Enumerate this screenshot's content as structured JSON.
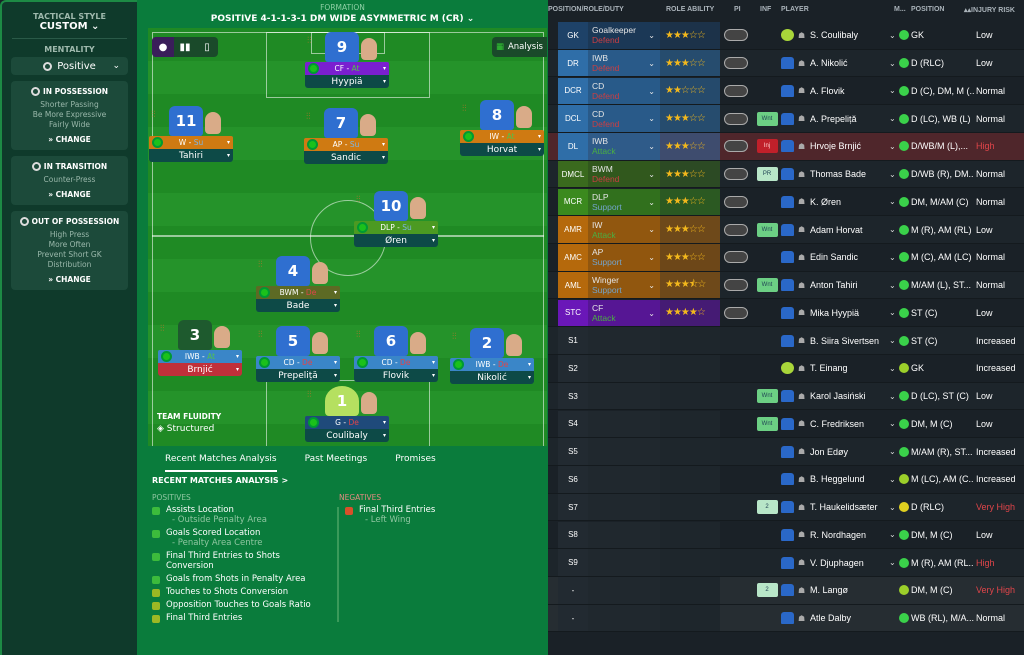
{
  "sidebar": {
    "tactical_style_label": "TACTICAL STYLE",
    "tactical_style": "CUSTOM",
    "mentality_label": "MENTALITY",
    "mentality": "Positive",
    "panels": [
      {
        "title": "IN POSSESSION",
        "lines": [
          "Shorter Passing",
          "Be More Expressive",
          "Fairly Wide"
        ],
        "action": "CHANGE"
      },
      {
        "title": "IN TRANSITION",
        "lines": [
          "Counter-Press"
        ],
        "action": "CHANGE"
      },
      {
        "title": "OUT OF POSSESSION",
        "lines": [
          "High Press",
          "More Often",
          "Prevent Short GK",
          "Distribution"
        ],
        "action": "CHANGE"
      }
    ]
  },
  "formation": {
    "label": "FORMATION",
    "name": "POSITIVE 4-1-1-3-1 DM WIDE ASYMMETRIC M (CR)",
    "analysis": "Analysis",
    "team_fluidity_label": "TEAM FLUIDITY",
    "team_fluidity": "Structured",
    "players": [
      {
        "number": "9",
        "role": "CF",
        "duty": "At",
        "name": "Hyypiä",
        "role_color": "#7a1fd0"
      },
      {
        "number": "11",
        "role": "W",
        "duty": "Su",
        "name": "Tahiri",
        "role_color": "#cf7a12"
      },
      {
        "number": "7",
        "role": "AP",
        "duty": "Su",
        "name": "Sandic",
        "role_color": "#cf7a12"
      },
      {
        "number": "8",
        "role": "IW",
        "duty": "At",
        "name": "Horvat",
        "role_color": "#cf7a12"
      },
      {
        "number": "10",
        "role": "DLP",
        "duty": "Su",
        "name": "Øren",
        "role_color": "#4c9a22"
      },
      {
        "number": "4",
        "role": "BWM",
        "duty": "De",
        "name": "Bade",
        "role_color": "#5d6a24"
      },
      {
        "number": "3",
        "role": "IWB",
        "duty": "At",
        "name": "Brnjić",
        "role_color": "#3a86c8",
        "name_color": "#c0303a"
      },
      {
        "number": "5",
        "role": "CD",
        "duty": "De",
        "name": "Prepeliță",
        "role_color": "#3a86c8"
      },
      {
        "number": "6",
        "role": "CD",
        "duty": "De",
        "name": "Flovik",
        "role_color": "#3a86c8"
      },
      {
        "number": "2",
        "role": "IWB",
        "duty": "De",
        "name": "Nikolić",
        "role_color": "#3a86c8"
      },
      {
        "number": "1",
        "role": "G",
        "duty": "De",
        "name": "Coulibaly",
        "role_color": "#1f4a7a"
      }
    ]
  },
  "analysis": {
    "tabs": [
      "Recent Matches Analysis",
      "Past Meetings",
      "Promises"
    ],
    "heading": "RECENT MATCHES ANALYSIS >",
    "positives_label": "POSITIVES",
    "negatives_label": "NEGATIVES",
    "positives": [
      {
        "title": "Assists Location",
        "detail": "- Outside Penalty Area"
      },
      {
        "title": "Goals Scored Location",
        "detail": "- Penalty Area Centre"
      },
      {
        "title": "Final Third Entries to Shots Conversion",
        "detail": ""
      },
      {
        "title": "Goals from Shots in Penalty Area",
        "detail": ""
      },
      {
        "title": "Touches to Shots Conversion",
        "detail": ""
      },
      {
        "title": "Opposition Touches to Goals Ratio",
        "detail": ""
      },
      {
        "title": "Final Third Entries",
        "detail": ""
      }
    ],
    "negatives": [
      {
        "title": "Final Third Entries",
        "detail": "- Left Wing"
      }
    ]
  },
  "table": {
    "headers": [
      "POSITION/ROLE/DUTY",
      "ROLE ABILITY",
      "PI",
      "INF",
      "PLAYER",
      "M...",
      "POSITION",
      "INJURY RISK"
    ],
    "rows": [
      {
        "pos": "GK",
        "role": "Goalkeeper",
        "duty": "Defend",
        "stars": 3,
        "name": "S. Coulibaly",
        "position": "GK",
        "risk": "Low",
        "color": "#1e4268",
        "inf": ""
      },
      {
        "pos": "DR",
        "role": "IWB",
        "duty": "Defend",
        "stars": 3,
        "name": "A. Nikolić",
        "position": "D (RLC)",
        "risk": "Low",
        "color": "#2f6ea8",
        "inf": ""
      },
      {
        "pos": "DCR",
        "role": "CD",
        "duty": "Defend",
        "stars": 2,
        "name": "A. Flovik",
        "position": "D (C), DM, M (...",
        "risk": "Normal",
        "color": "#2f6ea8",
        "inf": ""
      },
      {
        "pos": "DCL",
        "role": "CD",
        "duty": "Defend",
        "stars": 3,
        "name": "A. Prepeliță",
        "position": "D (LC), WB (L)",
        "risk": "Normal",
        "color": "#2f6ea8",
        "inf": "Wnt"
      },
      {
        "pos": "DL",
        "role": "IWB",
        "duty": "Attack",
        "stars": 3,
        "name": "Hrvoje Brnjić",
        "position": "D/WB/M (L),...",
        "risk": "High",
        "color": "#2f6ea8",
        "inf": "Inj",
        "highlight": true
      },
      {
        "pos": "DMCL",
        "role": "BWM",
        "duty": "Defend",
        "stars": 3,
        "name": "Thomas Bade",
        "position": "D/WB (R), DM...",
        "risk": "Normal",
        "color": "#3a6a1e",
        "inf": "PR"
      },
      {
        "pos": "MCR",
        "role": "DLP",
        "duty": "Support",
        "stars": 3,
        "name": "K. Øren",
        "position": "DM, M/AM (C)",
        "risk": "Normal",
        "color": "#3b8a1e",
        "inf": ""
      },
      {
        "pos": "AMR",
        "role": "IW",
        "duty": "Attack",
        "stars": 3,
        "name": "Adam Horvat",
        "position": "M (R), AM (RL)",
        "risk": "Low",
        "color": "#b5690c",
        "inf": "Wnt"
      },
      {
        "pos": "AMC",
        "role": "AP",
        "duty": "Support",
        "stars": 3,
        "name": "Edin Sandic",
        "position": "M (C), AM (LC)",
        "risk": "Normal",
        "color": "#b5690c",
        "inf": ""
      },
      {
        "pos": "AML",
        "role": "Winger",
        "duty": "Support",
        "stars": 3.5,
        "name": "Anton Tahiri",
        "position": "M/AM (L), ST...",
        "risk": "Normal",
        "color": "#b5690c",
        "inf": "Wnt"
      },
      {
        "pos": "STC",
        "role": "CF",
        "duty": "Attack",
        "stars": 4,
        "name": "Mika Hyypiä",
        "position": "ST (C)",
        "risk": "Low",
        "color": "#6a17b8",
        "inf": ""
      },
      {
        "pos": "S1",
        "name": "B. Siira Sivertsen",
        "position": "ST (C)",
        "risk": "Increased",
        "inf": ""
      },
      {
        "pos": "S2",
        "name": "T. Einang",
        "position": "GK",
        "risk": "Increased",
        "inf": "",
        "gk": true,
        "cond": "#9ccf2a"
      },
      {
        "pos": "S3",
        "name": "Karol Jasiński",
        "position": "D (LC), ST (C)",
        "risk": "Low",
        "inf": "Wnt"
      },
      {
        "pos": "S4",
        "name": "C. Fredriksen",
        "position": "DM, M (C)",
        "risk": "Low",
        "inf": "Wnt"
      },
      {
        "pos": "S5",
        "name": "Jon Edøy",
        "position": "M/AM (R), ST...",
        "risk": "Increased",
        "inf": ""
      },
      {
        "pos": "S6",
        "name": "B. Heggelund",
        "position": "M (LC), AM (C...",
        "risk": "Increased",
        "inf": "",
        "cond": "#9ccf2a"
      },
      {
        "pos": "S7",
        "name": "T. Haukelidsæter",
        "position": "D (RLC)",
        "risk": "Very High",
        "inf": "2",
        "cond": "#e0d020"
      },
      {
        "pos": "S8",
        "name": "R. Nordhagen",
        "position": "DM, M (C)",
        "risk": "Low",
        "inf": ""
      },
      {
        "pos": "S9",
        "name": "V. Djuphagen",
        "position": "M (R), AM (RL...",
        "risk": "High",
        "inf": ""
      },
      {
        "pos": "-",
        "name": "M. Langø",
        "position": "DM, M (C)",
        "risk": "Very High",
        "inf": "2",
        "cond": "#9ccf2a",
        "reserve": true
      },
      {
        "pos": "-",
        "name": "Atle Dalby",
        "position": "WB (RL), M/A...",
        "risk": "Normal",
        "inf": "",
        "reserve": true
      }
    ]
  },
  "colors": {
    "defend": "#e0454a",
    "support": "#7fb5e0",
    "attack": "#52c24a",
    "risk_high": "#e0454a",
    "condition": "#3ad14a"
  }
}
